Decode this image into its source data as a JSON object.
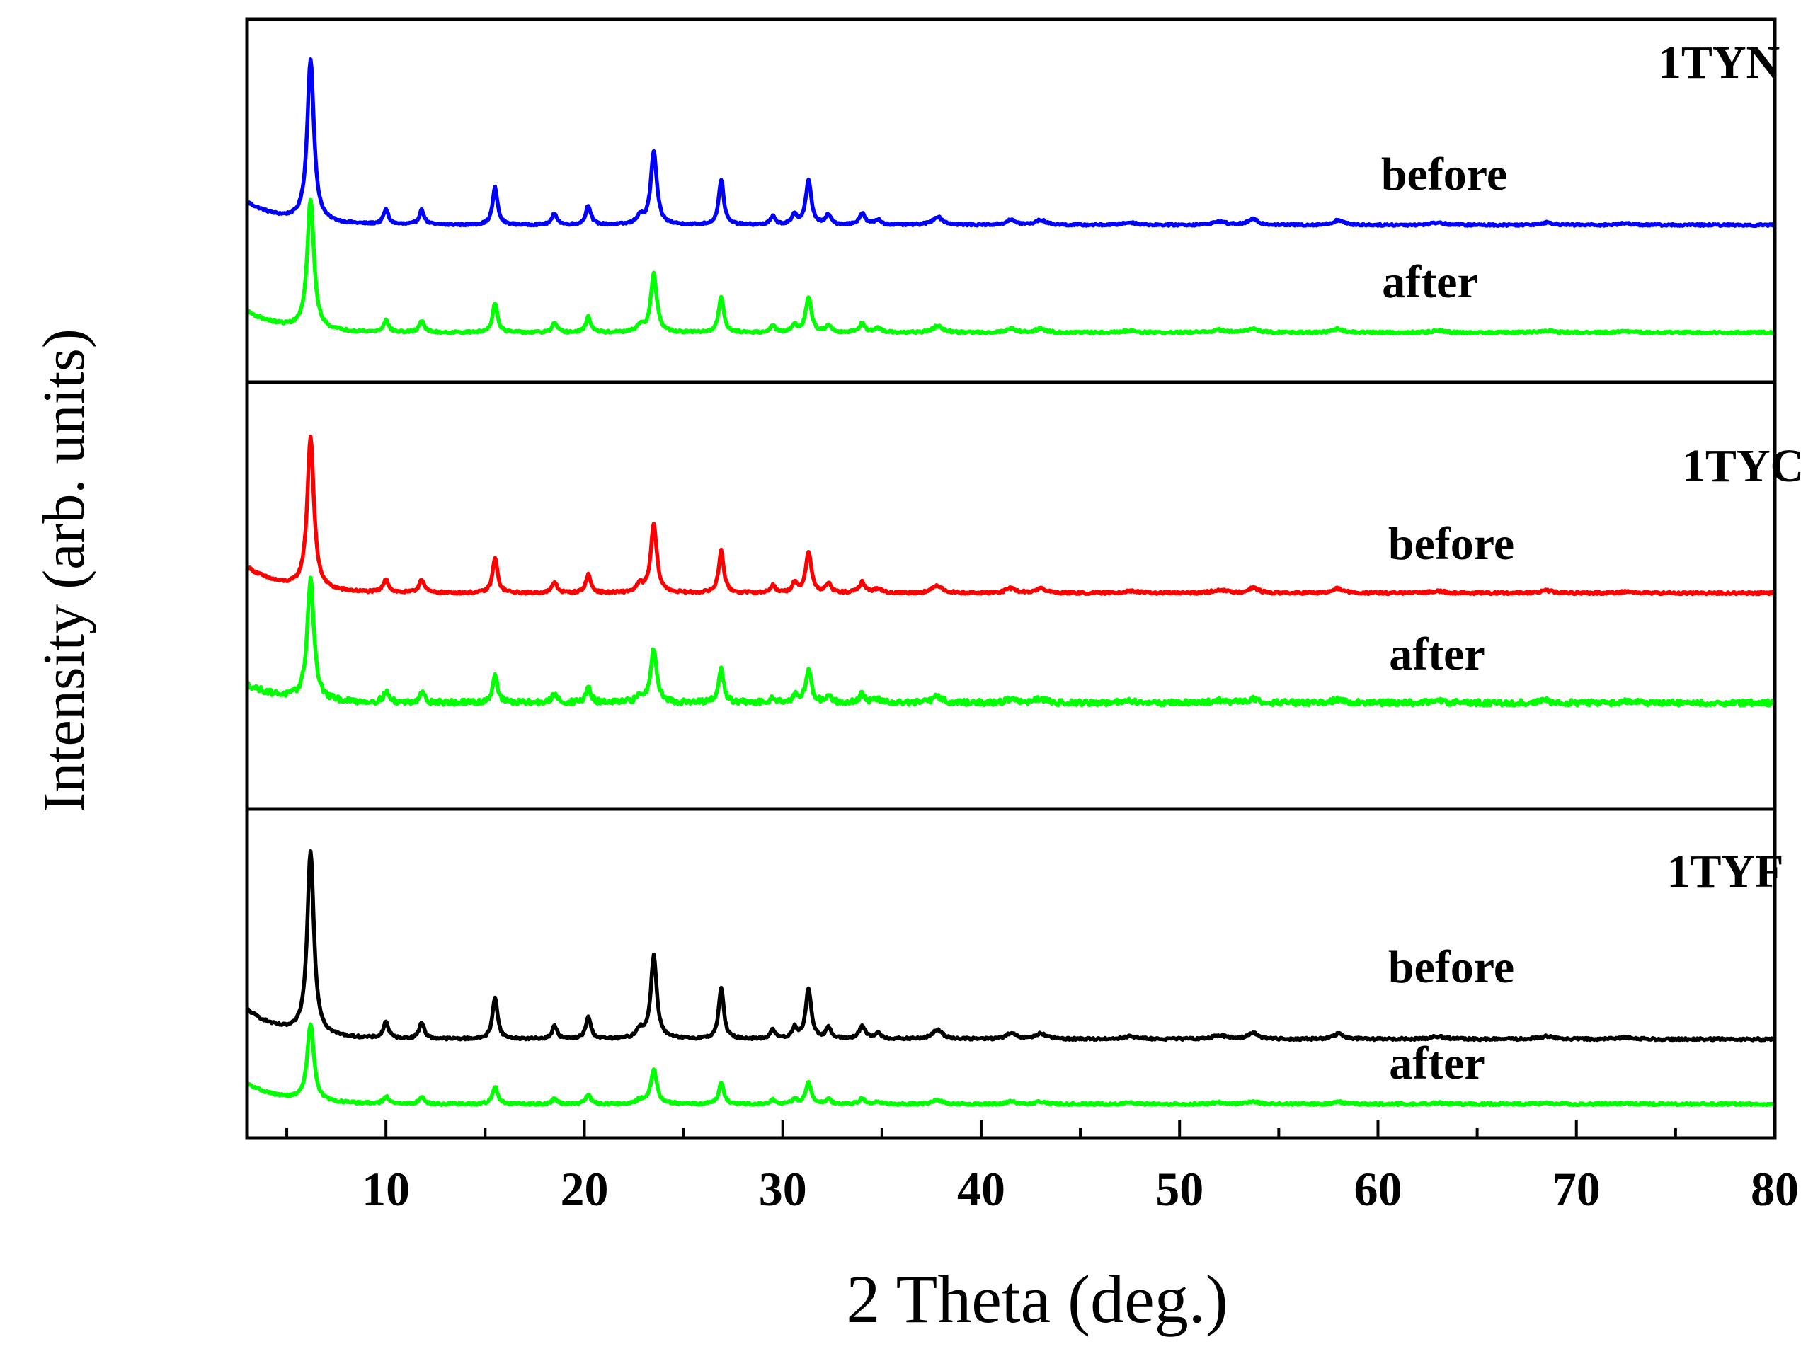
{
  "chart_data": {
    "type": "line",
    "title": "",
    "xlabel": "2 Theta (deg.)",
    "ylabel": "Intensity (arb. units)",
    "xlim": [
      3,
      80
    ],
    "xticks": [
      10,
      20,
      30,
      40,
      50,
      60,
      70,
      80
    ],
    "grid": false,
    "legend": "none",
    "panels": [
      {
        "sample": "1TYN",
        "series": [
          {
            "name": "before",
            "color": "#0000ff",
            "offset": 1.0,
            "amp": 1.0,
            "start": 0.14,
            "end": 0.0,
            "noise": 0.006
          },
          {
            "name": "after",
            "color": "#00ff00",
            "offset": 0.0,
            "amp": 0.8,
            "start": 0.13,
            "end": 0.0,
            "noise": 0.007
          }
        ]
      },
      {
        "sample": "1TYC",
        "series": [
          {
            "name": "before",
            "color": "#ff0000",
            "offset": 1.0,
            "amp": 1.0,
            "start": 0.17,
            "end": 0.0,
            "noise": 0.008
          },
          {
            "name": "after",
            "color": "#00ff00",
            "offset": 0.0,
            "amp": 0.8,
            "start": 0.12,
            "end": 0.0,
            "noise": 0.018
          }
        ]
      },
      {
        "sample": "1TYF",
        "series": [
          {
            "name": "before",
            "color": "#000000",
            "offset": 0.7,
            "amp": 1.0,
            "start": 0.16,
            "end": 0.0,
            "noise": 0.006
          },
          {
            "name": "after",
            "color": "#00ff00",
            "offset": 0.0,
            "amp": 0.42,
            "start": 0.11,
            "end": 0.0,
            "noise": 0.006
          }
        ]
      }
    ],
    "peaks_2theta": [
      [
        6.2,
        1.0,
        0.2
      ],
      [
        10.0,
        0.09,
        0.15
      ],
      [
        11.8,
        0.09,
        0.15
      ],
      [
        15.5,
        0.23,
        0.15
      ],
      [
        18.5,
        0.07,
        0.15
      ],
      [
        20.2,
        0.12,
        0.15
      ],
      [
        22.8,
        0.05,
        0.2
      ],
      [
        23.5,
        0.45,
        0.18
      ],
      [
        26.9,
        0.28,
        0.15
      ],
      [
        29.5,
        0.05,
        0.15
      ],
      [
        30.6,
        0.06,
        0.15
      ],
      [
        31.3,
        0.27,
        0.17
      ],
      [
        32.3,
        0.06,
        0.15
      ],
      [
        34.0,
        0.07,
        0.18
      ],
      [
        34.8,
        0.03,
        0.2
      ],
      [
        37.8,
        0.05,
        0.3
      ],
      [
        41.5,
        0.03,
        0.3
      ],
      [
        43.0,
        0.03,
        0.3
      ],
      [
        47.5,
        0.015,
        0.4
      ],
      [
        52.0,
        0.02,
        0.4
      ],
      [
        53.7,
        0.035,
        0.3
      ],
      [
        58.0,
        0.03,
        0.3
      ],
      [
        63.0,
        0.015,
        0.4
      ],
      [
        68.5,
        0.015,
        0.4
      ],
      [
        72.5,
        0.01,
        0.4
      ]
    ]
  }
}
